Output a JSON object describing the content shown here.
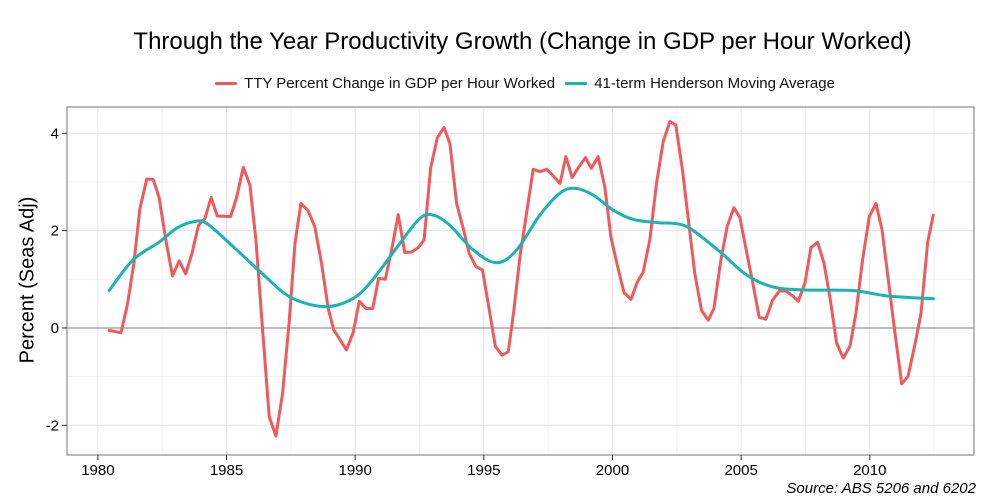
{
  "chart_data": {
    "type": "line",
    "title": "Through the Year Productivity Growth (Change in GDP per Hour Worked)",
    "xlabel": "",
    "ylabel": "Percent (Seas Adj)",
    "source": "Source: ABS 5206 and 6202",
    "xlim": [
      1978.8,
      2014.05
    ],
    "ylim": [
      -2.61,
      4.54
    ],
    "x_ticks": [
      1980,
      1985,
      1990,
      1995,
      2000,
      2005,
      2010
    ],
    "y_ticks": [
      -2,
      0,
      2,
      4
    ],
    "x_tick_labels": [
      "1980",
      "1985",
      "1990",
      "1995",
      "2000",
      "2005",
      "2010"
    ],
    "y_tick_labels": [
      "-2",
      "0",
      "2",
      "4"
    ],
    "grid": true,
    "reference_line": 0,
    "legend_position": "top",
    "series": [
      {
        "name": "TTY Percent Change in GDP per Hour Worked",
        "color": "#F15A5A",
        "x": [
          1980.44,
          1980.9,
          1981.15,
          1981.4,
          1981.63,
          1981.9,
          1982.15,
          1982.38,
          1982.64,
          1982.9,
          1983.16,
          1983.41,
          1983.65,
          1983.91,
          1984.16,
          1984.4,
          1984.64,
          1985.16,
          1985.39,
          1985.65,
          1985.91,
          1986.14,
          1986.4,
          1986.66,
          1986.92,
          1987.18,
          1987.44,
          1987.66,
          1987.89,
          1988.17,
          1988.43,
          1988.69,
          1988.95,
          1989.17,
          1989.66,
          1989.92,
          1990.16,
          1990.42,
          1990.68,
          1990.91,
          1991.17,
          1991.43,
          1991.67,
          1991.93,
          1992.19,
          1992.45,
          1992.68,
          1992.93,
          1993.19,
          1993.45,
          1993.68,
          1993.94,
          1994.2,
          1994.43,
          1994.69,
          1994.95,
          1995.21,
          1995.45,
          1995.71,
          1995.95,
          1996.17,
          1996.4,
          1996.66,
          1996.92,
          1997.18,
          1997.44,
          1997.7,
          1997.96,
          1998.19,
          1998.43,
          1998.69,
          1998.95,
          1999.18,
          1999.44,
          1999.7,
          1999.94,
          2000.2,
          2000.45,
          2000.72,
          2000.97,
          2001.19,
          2001.45,
          2001.71,
          2001.97,
          2002.23,
          2002.46,
          2002.72,
          2002.98,
          2003.2,
          2003.46,
          2003.72,
          2003.94,
          2004.2,
          2004.46,
          2004.72,
          2004.95,
          2005.21,
          2005.47,
          2005.7,
          2005.96,
          2006.22,
          2006.48,
          2006.74,
          2007.0,
          2007.22,
          2007.48,
          2007.71,
          2007.97,
          2008.22,
          2008.47,
          2008.71,
          2008.97,
          2009.23,
          2009.46,
          2009.72,
          2009.98,
          2010.24,
          2010.48,
          2010.72,
          2010.98,
          2011.24,
          2011.49,
          2011.75,
          2011.99,
          2012.25,
          2012.47
        ],
        "y": [
          -0.05,
          -0.1,
          0.49,
          1.33,
          2.44,
          3.06,
          3.05,
          2.68,
          1.81,
          1.07,
          1.38,
          1.11,
          1.52,
          2.11,
          2.25,
          2.68,
          2.3,
          2.29,
          2.68,
          3.3,
          2.94,
          1.81,
          -0.04,
          -1.82,
          -2.22,
          -1.34,
          0.16,
          1.74,
          2.56,
          2.41,
          2.08,
          1.33,
          0.4,
          -0.04,
          -0.45,
          -0.1,
          0.55,
          0.4,
          0.4,
          1.02,
          1.0,
          1.64,
          2.33,
          1.55,
          1.56,
          1.65,
          1.81,
          3.28,
          3.91,
          4.12,
          3.79,
          2.56,
          2.05,
          1.53,
          1.26,
          1.19,
          0.38,
          -0.38,
          -0.56,
          -0.49,
          0.37,
          1.46,
          2.35,
          3.26,
          3.21,
          3.26,
          3.12,
          2.97,
          3.52,
          3.09,
          3.31,
          3.5,
          3.28,
          3.52,
          2.9,
          1.87,
          1.26,
          0.72,
          0.59,
          0.95,
          1.14,
          1.81,
          2.97,
          3.83,
          4.24,
          4.17,
          3.24,
          2.08,
          1.12,
          0.36,
          0.16,
          0.4,
          1.36,
          2.09,
          2.47,
          2.27,
          1.57,
          0.88,
          0.22,
          0.18,
          0.57,
          0.76,
          0.76,
          0.66,
          0.55,
          0.93,
          1.65,
          1.76,
          1.33,
          0.57,
          -0.31,
          -0.62,
          -0.37,
          0.3,
          1.4,
          2.29,
          2.56,
          2.01,
          0.99,
          -0.11,
          -1.15,
          -0.99,
          -0.35,
          0.3,
          1.77,
          2.32
        ]
      },
      {
        "name": "41-term Henderson Moving Average",
        "color": "#1BB3B5",
        "x": [
          1980.44,
          1981.37,
          1982.4,
          1983.06,
          1983.7,
          1984.22,
          1985.26,
          1986.3,
          1987.46,
          1988.76,
          1989.8,
          1990.57,
          1991.74,
          1992.51,
          1993.03,
          1993.68,
          1994.59,
          1995.5,
          1996.27,
          1997.18,
          1997.96,
          1998.54,
          1999.25,
          2000.03,
          2000.81,
          2001.84,
          2002.36,
          2003.0,
          2004.17,
          2005.21,
          2006.25,
          2007.54,
          2009.35,
          2010.65,
          2012.47
        ],
        "y": [
          0.77,
          1.4,
          1.77,
          2.05,
          2.18,
          2.15,
          1.67,
          1.16,
          0.64,
          0.44,
          0.57,
          0.92,
          1.74,
          2.25,
          2.32,
          2.11,
          1.6,
          1.34,
          1.6,
          2.32,
          2.77,
          2.87,
          2.73,
          2.42,
          2.23,
          2.16,
          2.15,
          2.05,
          1.57,
          1.09,
          0.84,
          0.78,
          0.77,
          0.66,
          0.6
        ]
      }
    ]
  }
}
